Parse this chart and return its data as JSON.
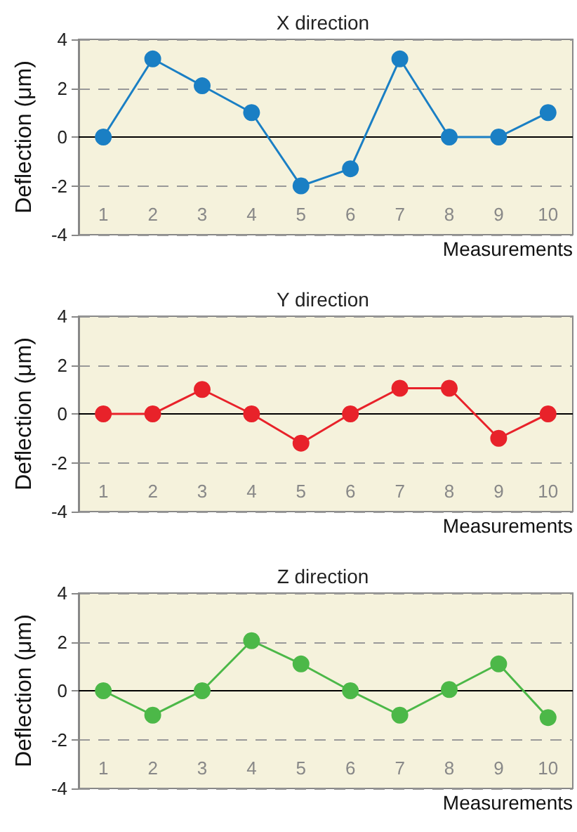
{
  "chart_data": [
    {
      "type": "line",
      "title": "X direction",
      "xlabel": "Measurements",
      "ylabel": "Deflection (μm)",
      "categories": [
        "1",
        "2",
        "3",
        "4",
        "5",
        "6",
        "7",
        "8",
        "9",
        "10"
      ],
      "series": [
        {
          "color": "#1a7fc4",
          "values": [
            0,
            3.2,
            2.1,
            1,
            -2,
            -1.3,
            3.2,
            0,
            0,
            1
          ]
        }
      ],
      "ylim": [
        -4,
        4
      ],
      "yticks": [
        -4,
        -2,
        0,
        2,
        4
      ],
      "grid": "y",
      "marker": "circle",
      "line_style": "solid",
      "ref_lines": [
        {
          "axis": "y",
          "value": 0,
          "color": "#000000"
        }
      ]
    },
    {
      "type": "line",
      "title": "Y direction",
      "xlabel": "Measurements",
      "ylabel": "Deflection (μm)",
      "categories": [
        "1",
        "2",
        "3",
        "4",
        "5",
        "6",
        "7",
        "8",
        "9",
        "10"
      ],
      "series": [
        {
          "color": "#e8222a",
          "values": [
            0,
            0,
            1,
            0,
            -1.2,
            0,
            1.05,
            1.05,
            -1,
            0
          ]
        }
      ],
      "ylim": [
        -4,
        4
      ],
      "yticks": [
        -4,
        -2,
        0,
        2,
        4
      ],
      "grid": "y",
      "marker": "circle",
      "line_style": "solid",
      "ref_lines": [
        {
          "axis": "y",
          "value": 0,
          "color": "#000000"
        }
      ]
    },
    {
      "type": "line",
      "title": "Z direction",
      "xlabel": "Measurements",
      "ylabel": "Deflection (μm)",
      "categories": [
        "1",
        "2",
        "3",
        "4",
        "5",
        "6",
        "7",
        "8",
        "9",
        "10"
      ],
      "series": [
        {
          "color": "#4cb848",
          "values": [
            0,
            -1,
            0,
            2.05,
            1.1,
            0,
            -1,
            0.05,
            1.1,
            -1.1
          ]
        }
      ],
      "ylim": [
        -4,
        4
      ],
      "yticks": [
        -4,
        -2,
        0,
        2,
        4
      ],
      "grid": "y",
      "marker": "circle",
      "line_style": "solid",
      "ref_lines": [
        {
          "axis": "y",
          "value": 0,
          "color": "#000000"
        }
      ]
    }
  ]
}
